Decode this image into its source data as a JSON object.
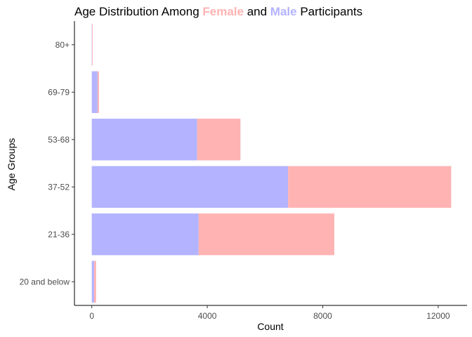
{
  "chart_data": {
    "type": "bar",
    "orientation": "horizontal",
    "stacked": true,
    "title_parts": [
      {
        "text": "Age Distribution Among ",
        "highlight": false
      },
      {
        "text": "Female",
        "highlight": true,
        "color": "#ffb3b3"
      },
      {
        "text": " and ",
        "highlight": false
      },
      {
        "text": "Male",
        "highlight": true,
        "color": "#b3b3ff"
      },
      {
        "text": " Participants",
        "highlight": false
      }
    ],
    "xlabel": "Count",
    "ylabel": "Age Groups",
    "categories": [
      "20 and below",
      "21-36",
      "37-52",
      "53-68",
      "69-79",
      "80+"
    ],
    "series": [
      {
        "key": "male",
        "color": "#b3b3ff",
        "values": [
          80,
          3700,
          6800,
          3650,
          200,
          10
        ]
      },
      {
        "key": "female",
        "color": "#ffb3b3",
        "values": [
          70,
          4700,
          5650,
          1500,
          50,
          5
        ]
      }
    ],
    "x_ticks": [
      0,
      4000,
      8000,
      12000
    ],
    "xlim": [
      -600,
      13000
    ],
    "grid": false,
    "legend": "none"
  }
}
